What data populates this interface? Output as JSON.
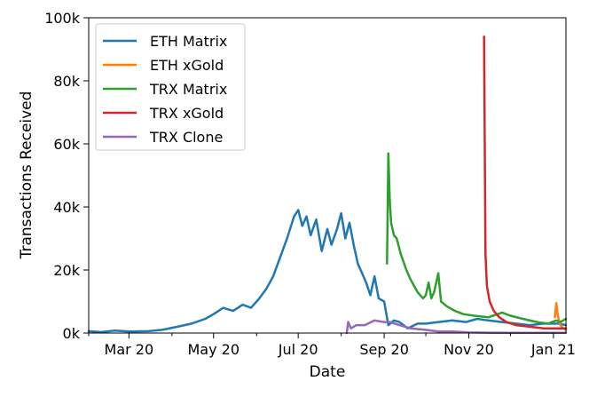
{
  "chart_data": {
    "type": "line",
    "title": "",
    "xlabel": "Date",
    "ylabel": "Transactions Received",
    "xlim": [
      "2020-02-01",
      "2021-01-10"
    ],
    "ylim": [
      0,
      100000
    ],
    "x_ticks": [
      {
        "date": "2020-03-01",
        "label": "Mar 20"
      },
      {
        "date": "2020-05-01",
        "label": "May 20"
      },
      {
        "date": "2020-07-01",
        "label": "Jul 20"
      },
      {
        "date": "2020-09-01",
        "label": "Sep 20"
      },
      {
        "date": "2020-11-01",
        "label": "Nov 20"
      },
      {
        "date": "2021-01-01",
        "label": "Jan 21"
      }
    ],
    "y_ticks": [
      {
        "value": 0,
        "label": "0k"
      },
      {
        "value": 20000,
        "label": "20k"
      },
      {
        "value": 40000,
        "label": "40k"
      },
      {
        "value": 60000,
        "label": "60k"
      },
      {
        "value": 80000,
        "label": "80k"
      },
      {
        "value": 100000,
        "label": "100k"
      }
    ],
    "grid": false,
    "legend_position": "top-left",
    "series": [
      {
        "name": "ETH Matrix",
        "color": "#1f77b4",
        "points": [
          [
            "2020-02-01",
            600
          ],
          [
            "2020-02-10",
            300
          ],
          [
            "2020-02-20",
            800
          ],
          [
            "2020-03-01",
            500
          ],
          [
            "2020-03-15",
            600
          ],
          [
            "2020-03-25",
            1000
          ],
          [
            "2020-04-05",
            2000
          ],
          [
            "2020-04-15",
            3000
          ],
          [
            "2020-04-25",
            4500
          ],
          [
            "2020-05-01",
            6000
          ],
          [
            "2020-05-08",
            8000
          ],
          [
            "2020-05-15",
            7000
          ],
          [
            "2020-05-22",
            9000
          ],
          [
            "2020-05-28",
            8000
          ],
          [
            "2020-06-03",
            11000
          ],
          [
            "2020-06-08",
            14000
          ],
          [
            "2020-06-13",
            18000
          ],
          [
            "2020-06-18",
            24000
          ],
          [
            "2020-06-23",
            30000
          ],
          [
            "2020-06-28",
            37000
          ],
          [
            "2020-07-01",
            39000
          ],
          [
            "2020-07-04",
            34000
          ],
          [
            "2020-07-07",
            37000
          ],
          [
            "2020-07-10",
            31000
          ],
          [
            "2020-07-14",
            36000
          ],
          [
            "2020-07-18",
            26000
          ],
          [
            "2020-07-22",
            33000
          ],
          [
            "2020-07-25",
            28000
          ],
          [
            "2020-07-29",
            33000
          ],
          [
            "2020-08-01",
            38000
          ],
          [
            "2020-08-04",
            30000
          ],
          [
            "2020-08-07",
            35000
          ],
          [
            "2020-08-10",
            28000
          ],
          [
            "2020-08-13",
            22000
          ],
          [
            "2020-08-17",
            18000
          ],
          [
            "2020-08-19",
            16000
          ],
          [
            "2020-08-22",
            12000
          ],
          [
            "2020-08-25",
            18000
          ],
          [
            "2020-08-28",
            11000
          ],
          [
            "2020-09-01",
            10000
          ],
          [
            "2020-09-04",
            2500
          ],
          [
            "2020-09-08",
            4000
          ],
          [
            "2020-09-12",
            3500
          ],
          [
            "2020-09-18",
            1500
          ],
          [
            "2020-09-25",
            3000
          ],
          [
            "2020-10-01",
            3000
          ],
          [
            "2020-10-10",
            3500
          ],
          [
            "2020-10-20",
            4000
          ],
          [
            "2020-10-30",
            3500
          ],
          [
            "2020-11-07",
            4500
          ],
          [
            "2020-11-15",
            4000
          ],
          [
            "2020-11-25",
            3500
          ],
          [
            "2020-12-05",
            3000
          ],
          [
            "2020-12-15",
            2500
          ],
          [
            "2020-12-25",
            3000
          ],
          [
            "2021-01-05",
            3000
          ],
          [
            "2021-01-10",
            2500
          ]
        ]
      },
      {
        "name": "ETH xGold",
        "color": "#ff7f0e",
        "points": [
          [
            "2021-01-02",
            5000
          ],
          [
            "2021-01-03",
            9500
          ],
          [
            "2021-01-04",
            6000
          ],
          [
            "2021-01-05",
            4000
          ],
          [
            "2021-01-06",
            2500
          ],
          [
            "2021-01-08",
            1500
          ],
          [
            "2021-01-10",
            1000
          ]
        ]
      },
      {
        "name": "TRX Matrix",
        "color": "#2ca02c",
        "points": [
          [
            "2020-09-03",
            22000
          ],
          [
            "2020-09-04",
            57000
          ],
          [
            "2020-09-05",
            42000
          ],
          [
            "2020-09-06",
            35000
          ],
          [
            "2020-09-08",
            31000
          ],
          [
            "2020-09-10",
            30000
          ],
          [
            "2020-09-13",
            25000
          ],
          [
            "2020-09-17",
            20000
          ],
          [
            "2020-09-20",
            17000
          ],
          [
            "2020-09-25",
            13000
          ],
          [
            "2020-09-29",
            11000
          ],
          [
            "2020-10-01",
            12000
          ],
          [
            "2020-10-03",
            16000
          ],
          [
            "2020-10-05",
            11000
          ],
          [
            "2020-10-07",
            13000
          ],
          [
            "2020-10-10",
            19000
          ],
          [
            "2020-10-12",
            10000
          ],
          [
            "2020-10-16",
            8500
          ],
          [
            "2020-10-22",
            7000
          ],
          [
            "2020-10-28",
            6000
          ],
          [
            "2020-11-05",
            5500
          ],
          [
            "2020-11-15",
            5000
          ],
          [
            "2020-11-25",
            6500
          ],
          [
            "2020-12-01",
            5500
          ],
          [
            "2020-12-10",
            4500
          ],
          [
            "2020-12-20",
            3500
          ],
          [
            "2020-12-28",
            3000
          ],
          [
            "2021-01-03",
            4000
          ],
          [
            "2021-01-06",
            3500
          ],
          [
            "2021-01-10",
            4500
          ]
        ]
      },
      {
        "name": "TRX xGold",
        "color": "#d62728",
        "points": [
          [
            "2020-11-12",
            94000
          ],
          [
            "2020-11-13",
            25000
          ],
          [
            "2020-11-14",
            15000
          ],
          [
            "2020-11-16",
            10000
          ],
          [
            "2020-11-19",
            7000
          ],
          [
            "2020-11-23",
            5000
          ],
          [
            "2020-11-28",
            3500
          ],
          [
            "2020-12-05",
            2500
          ],
          [
            "2020-12-15",
            2000
          ],
          [
            "2020-12-25",
            1500
          ],
          [
            "2021-01-05",
            1500
          ],
          [
            "2021-01-10",
            1500
          ]
        ]
      },
      {
        "name": "TRX Clone",
        "color": "#9467bd",
        "points": [
          [
            "2020-08-05",
            0
          ],
          [
            "2020-08-06",
            3500
          ],
          [
            "2020-08-08",
            1500
          ],
          [
            "2020-08-12",
            2500
          ],
          [
            "2020-08-18",
            2500
          ],
          [
            "2020-08-25",
            4000
          ],
          [
            "2020-09-01",
            3500
          ],
          [
            "2020-09-05",
            3500
          ],
          [
            "2020-09-12",
            2500
          ],
          [
            "2020-09-20",
            1500
          ],
          [
            "2020-10-01",
            1000
          ],
          [
            "2020-10-10",
            500
          ],
          [
            "2020-10-20",
            500
          ],
          [
            "2020-11-01",
            200
          ],
          [
            "2020-11-15",
            100
          ],
          [
            "2020-12-01",
            50
          ],
          [
            "2020-12-20",
            50
          ],
          [
            "2021-01-10",
            50
          ]
        ]
      }
    ]
  }
}
